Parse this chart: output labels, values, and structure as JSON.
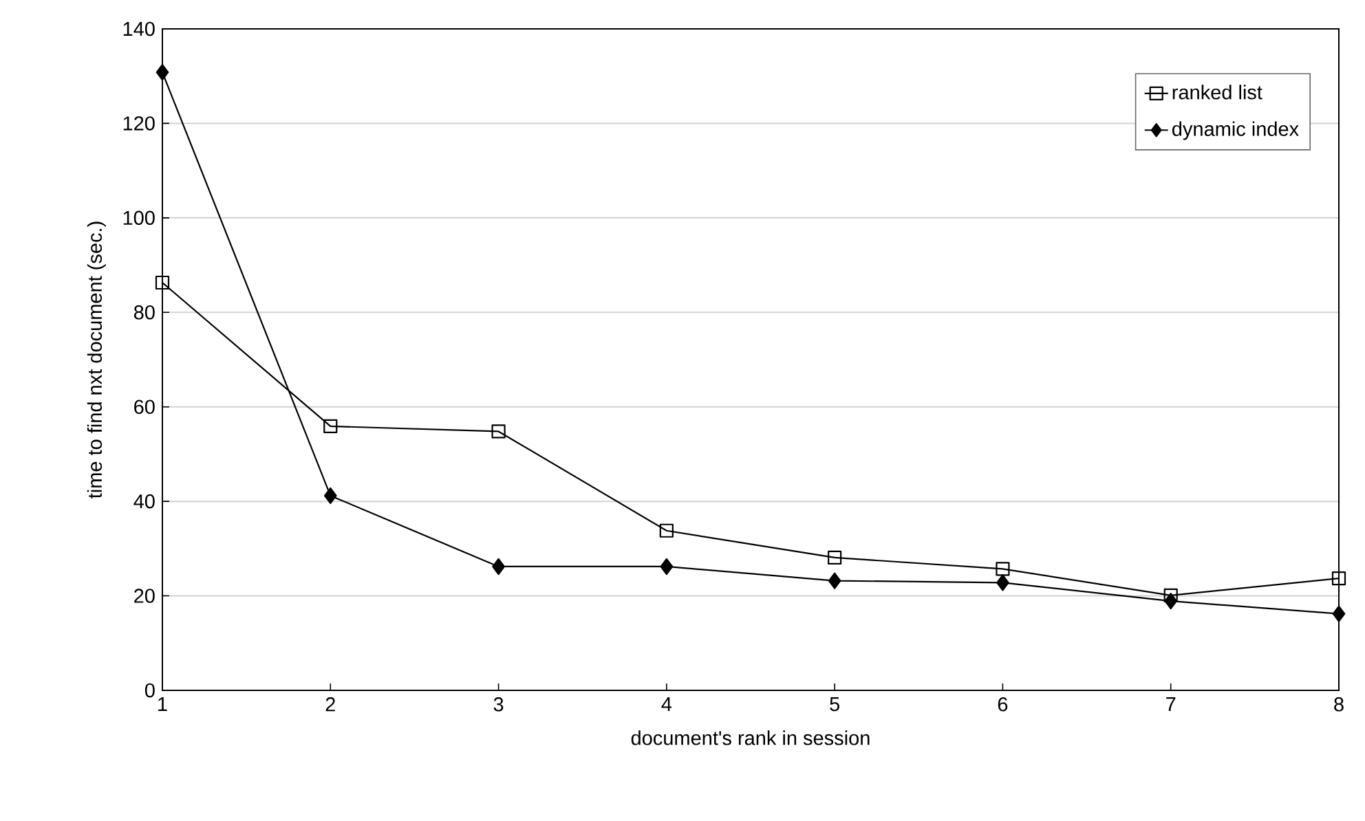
{
  "chart_data": {
    "type": "line",
    "xlabel": "document's rank in session",
    "ylabel": "time to find nxt document (sec.)",
    "x": [
      1,
      2,
      3,
      4,
      5,
      6,
      7,
      8
    ],
    "series": [
      {
        "name": "ranked list",
        "color": "#000000",
        "marker": "square",
        "values": [
          86.3,
          55.9,
          54.8,
          33.8,
          28.1,
          25.7,
          20.1,
          23.7
        ]
      },
      {
        "name": "dynamic index",
        "color": "#000000",
        "marker": "diamond",
        "values": [
          130.8,
          41.2,
          26.2,
          26.2,
          23.2,
          22.8,
          18.9,
          16.2
        ]
      }
    ],
    "xlim": [
      1,
      8
    ],
    "xticks": [
      1,
      2,
      3,
      4,
      5,
      6,
      7,
      8
    ],
    "ylim": [
      0,
      140
    ],
    "yticks": [
      0,
      20,
      40,
      60,
      80,
      100,
      120,
      140
    ],
    "grid": "y",
    "legend": "top right",
    "line_style": "solid"
  }
}
